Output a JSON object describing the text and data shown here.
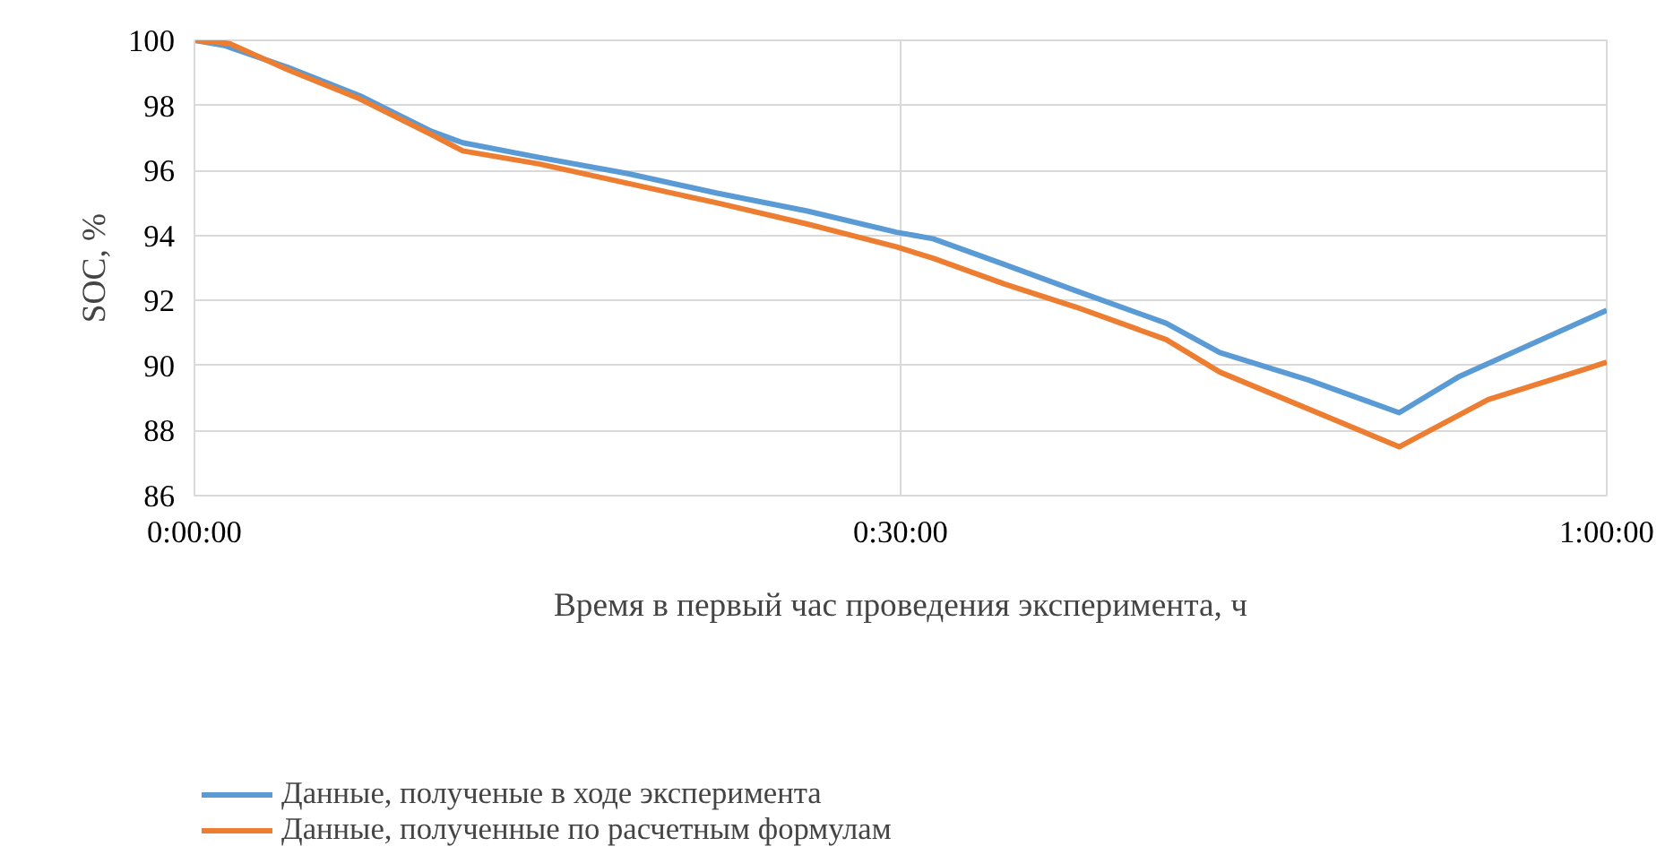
{
  "chart_data": {
    "type": "line",
    "xlabel": "Время в первый час проведения эксперимента, ч",
    "ylabel": "SOC, %",
    "xlim": [
      0,
      1
    ],
    "xticks": [
      {
        "value": 0,
        "label": "0:00:00"
      },
      {
        "value": 0.5,
        "label": "0:30:00"
      },
      {
        "value": 1,
        "label": "1:00:00"
      }
    ],
    "ylim": [
      86,
      100
    ],
    "yticks": [
      86,
      88,
      90,
      92,
      94,
      96,
      98,
      100
    ],
    "grid": true,
    "legend": "bottom left",
    "line_style": "solid",
    "series": [
      {
        "name": "Данные, полученые в ходе эксперимента",
        "color": "#5b9bd5",
        "x": [
          0,
          0.022,
          0.066,
          0.117,
          0.168,
          0.19,
          0.244,
          0.307,
          0.37,
          0.434,
          0.497,
          0.523,
          0.574,
          0.624,
          0.688,
          0.726,
          0.789,
          0.853,
          0.895,
          1.0
        ],
        "values": [
          100,
          99.83,
          99.17,
          98.3,
          97.2,
          96.85,
          96.4,
          95.9,
          95.3,
          94.75,
          94.1,
          93.9,
          93.1,
          92.3,
          91.3,
          90.4,
          89.55,
          88.55,
          89.65,
          91.7
        ]
      },
      {
        "name": "Данные, полученные по расчетным формулам",
        "color": "#ed7d31",
        "x": [
          0,
          0.025,
          0.066,
          0.117,
          0.168,
          0.19,
          0.244,
          0.307,
          0.37,
          0.434,
          0.497,
          0.523,
          0.574,
          0.624,
          0.688,
          0.726,
          0.853,
          0.916,
          1.0
        ],
        "values": [
          100,
          99.9,
          99.1,
          98.2,
          97.1,
          96.6,
          96.2,
          95.6,
          95.0,
          94.35,
          93.65,
          93.3,
          92.5,
          91.8,
          90.8,
          89.8,
          87.5,
          88.95,
          90.1
        ]
      }
    ]
  }
}
